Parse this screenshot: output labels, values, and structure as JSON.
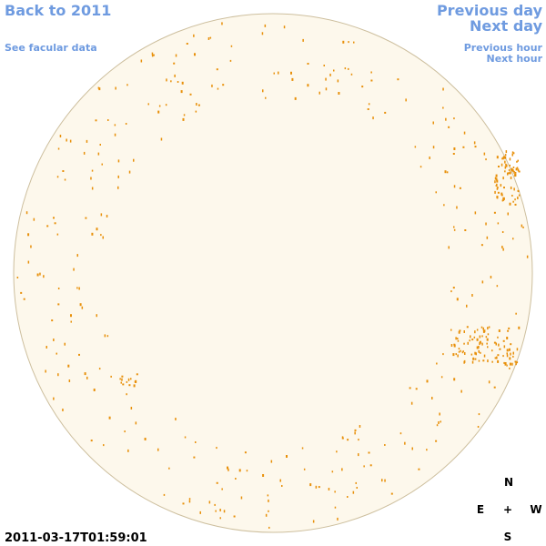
{
  "nav": {
    "back": "Back to 2011",
    "facular": "See facular data",
    "prev_day": "Previous day",
    "next_day": "Next day",
    "prev_hour": "Previous hour",
    "next_hour": "Next hour"
  },
  "timestamp": "2011-03-17T01:59:01",
  "compass": {
    "north": "N",
    "east": "E",
    "center": "+",
    "west": "W",
    "south": "S"
  }
}
